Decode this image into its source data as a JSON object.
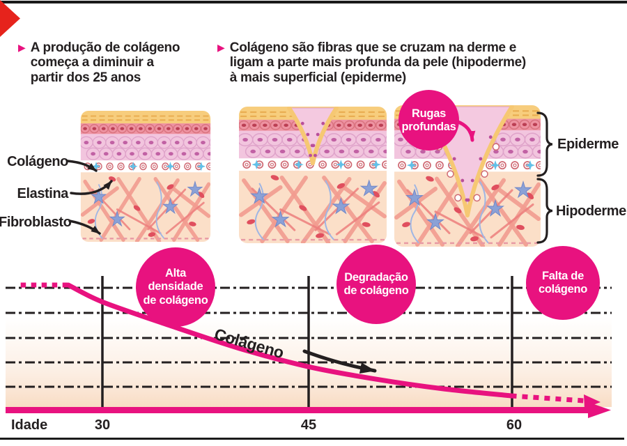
{
  "colors": {
    "magenta": "#e8127f",
    "corner_red": "#e6231c",
    "ink": "#231f20",
    "skin_corneum": "#f7cd7d",
    "skin_dermis": "#fbdfc8",
    "fiber": "#f29c90",
    "elastin_blue": "#62c0e8",
    "fibroblast_blue": "#8ba1d6"
  },
  "intro": {
    "bullet1": "A produção de colágeno\ncomeça a diminuir a\npartir dos 25 anos",
    "bullet2": "Colágeno são fibras que se cruzam na derme e\nligam a parte mais profunda da pele (hipoderme)\nà mais superficial (epiderme)"
  },
  "figure": {
    "labels_left": [
      {
        "label": "Colágeno"
      },
      {
        "label": "Elastina"
      },
      {
        "label": "Fibroblasto"
      }
    ],
    "wrinkle_badge": "Rugas\nprofundas",
    "layer_labels": [
      {
        "label": "Epiderme"
      },
      {
        "label": "Hipoderme"
      }
    ]
  },
  "chart": {
    "badges": {
      "alta": "Alta\ndensidade\nde colágeno",
      "degradacao": "Degradação\nde colágeno",
      "falta": "Falta de\ncolágeno"
    },
    "series_label": "Colágeno",
    "x_axis_title": "Idade",
    "ticks": [
      "30",
      "45",
      "60"
    ]
  },
  "chart_data": {
    "type": "line",
    "title": "",
    "xlabel": "Idade",
    "ylabel": "",
    "x_ticks": [
      30,
      45,
      60
    ],
    "ylim": [
      0,
      110
    ],
    "grid": "5 horizontal dash-dot lines, no y tick labels",
    "series": [
      {
        "name": "Colágeno",
        "x_age": [
          24,
          27.5,
          30,
          35,
          40,
          45,
          50,
          55,
          60,
          63
        ],
        "values_pct": [
          100,
          100,
          88,
          71,
          55,
          42,
          33,
          26,
          21,
          19.5
        ],
        "style": "thick magenta curve, dotted at both ends, arrow at right end"
      }
    ],
    "annotations": [
      "Alta densidade de colágeno",
      "Degradação de colágeno",
      "Falta de colágeno"
    ]
  }
}
